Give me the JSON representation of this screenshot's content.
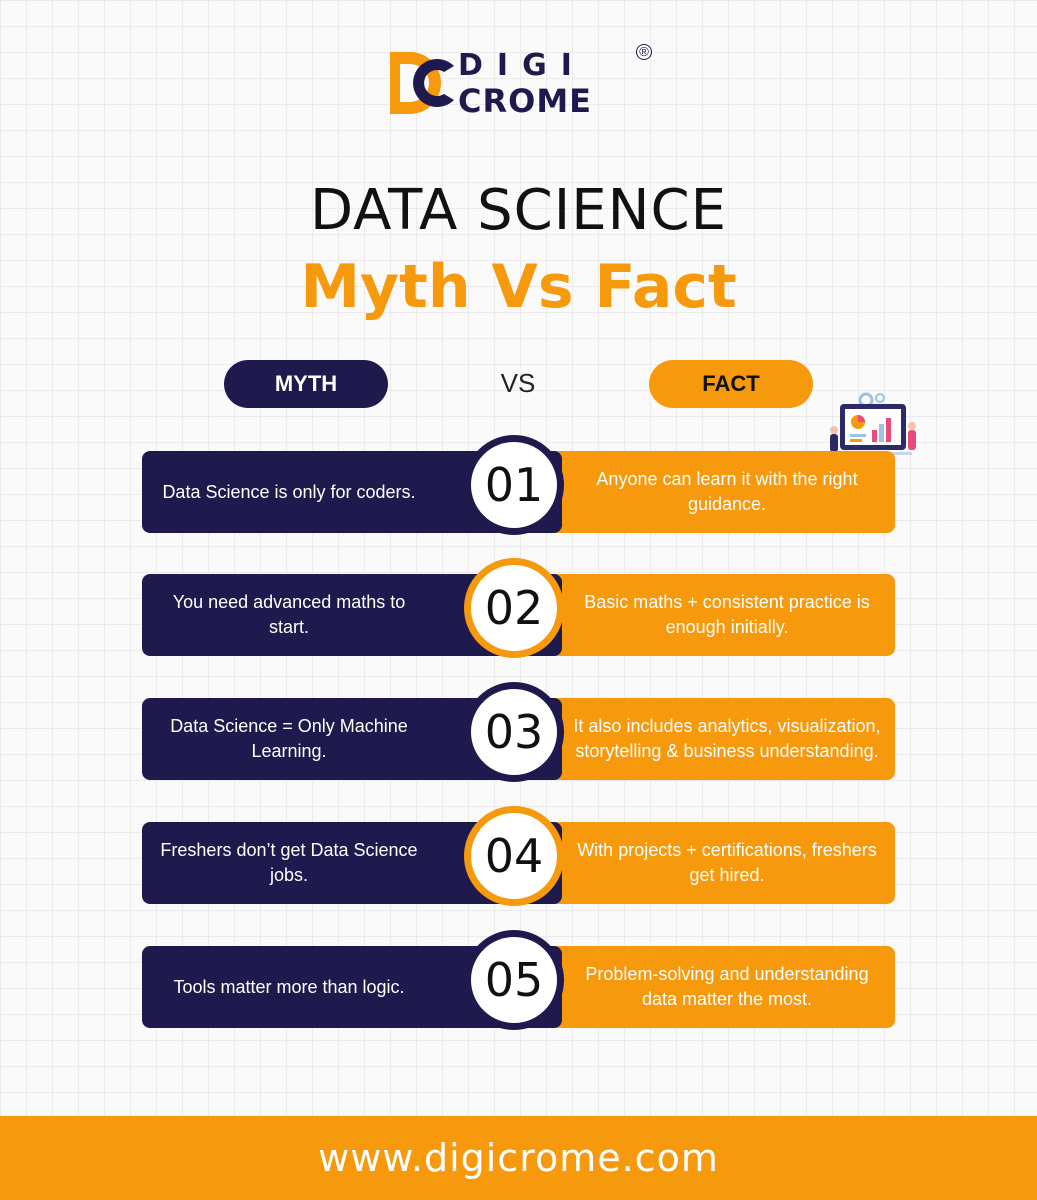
{
  "brand": {
    "logo_text_top": "DIGI",
    "logo_text_bottom": "CROME",
    "registered_mark": "®",
    "colors": {
      "navy": "#1e1a4d",
      "orange": "#f7990c"
    }
  },
  "header": {
    "title": "DATA SCIENCE",
    "subtitle": "Myth Vs Fact"
  },
  "columns": {
    "myth_label": "MYTH",
    "vs_label": "VS",
    "fact_label": "FACT"
  },
  "illustration_icon": "data-dashboard-illustration-icon",
  "rows": [
    {
      "number": "01",
      "myth": "Data Science is only for coders.",
      "fact": "Anyone can learn it with the right guidance.",
      "ring": "navy"
    },
    {
      "number": "02",
      "myth": "You need advanced maths to start.",
      "fact": "Basic maths + consistent practice is enough initially.",
      "ring": "orange"
    },
    {
      "number": "03",
      "myth": "Data Science = Only Machine Learning.",
      "fact": "It also includes analytics, visualization, storytelling & business understanding.",
      "ring": "navy"
    },
    {
      "number": "04",
      "myth": "Freshers don’t get Data Science jobs.",
      "fact": "With projects + certifications, freshers get hired.",
      "ring": "orange"
    },
    {
      "number": "05",
      "myth": "Tools matter more than logic.",
      "fact": "Problem-solving and understanding data matter the most.",
      "ring": "navy"
    }
  ],
  "footer": {
    "website": "www.digicrome.com"
  }
}
